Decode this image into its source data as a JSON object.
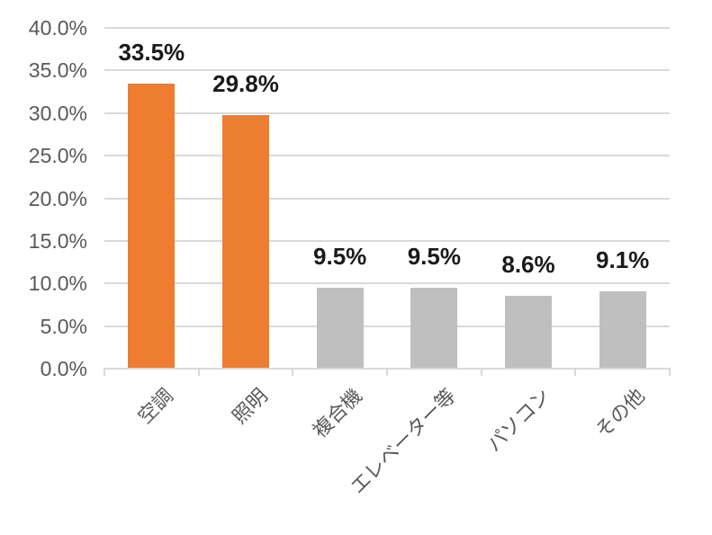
{
  "chart_data": {
    "type": "bar",
    "title": "",
    "xlabel": "",
    "ylabel": "",
    "categories": [
      "空調",
      "照明",
      "複合機",
      "エレベーター等",
      "パソコン",
      "その他"
    ],
    "values": [
      33.5,
      29.8,
      9.5,
      9.5,
      8.6,
      9.1
    ],
    "data_labels": [
      "33.5%",
      "29.8%",
      "9.5%",
      "9.5%",
      "8.6%",
      "9.1%"
    ],
    "bar_colors": [
      "#ED7D31",
      "#ED7D31",
      "#BFBFBF",
      "#BFBFBF",
      "#BFBFBF",
      "#BFBFBF"
    ],
    "ylim": [
      0,
      40
    ],
    "ytick_step": 5,
    "ytick_labels": [
      "0.0%",
      "5.0%",
      "10.0%",
      "15.0%",
      "20.0%",
      "25.0%",
      "30.0%",
      "35.0%",
      "40.0%"
    ],
    "grid": true,
    "legend": "none",
    "colors": {
      "highlight_bar": "#ED7D31",
      "default_bar": "#BFBFBF",
      "gridline": "#D9D9D9",
      "axis_line": "#D9D9D9",
      "axis_text": "#595959",
      "data_label_text": "#1a1a1a",
      "background": "#ffffff"
    }
  }
}
